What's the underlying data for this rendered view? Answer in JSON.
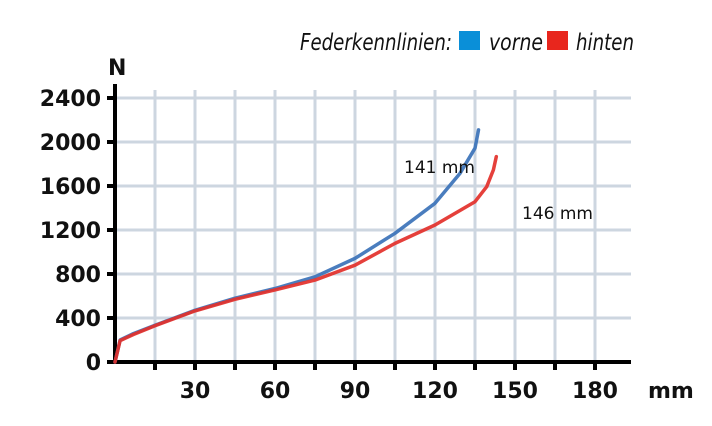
{
  "chart_data": {
    "type": "line",
    "title": "Federkennlinien:",
    "xlabel": "mm",
    "ylabel": "N",
    "xlim": [
      0,
      180
    ],
    "ylim": [
      0,
      2400
    ],
    "x_ticks": [
      30,
      60,
      90,
      120,
      150,
      180
    ],
    "x_tick_labels": [
      "30",
      "60",
      "90",
      "120",
      "150",
      "180"
    ],
    "y_ticks": [
      0,
      400,
      800,
      1200,
      1600,
      2000,
      2400
    ],
    "y_tick_labels": [
      "0",
      "400",
      "800",
      "1200",
      "1600",
      "2000",
      "2400"
    ],
    "x_grid_step": 15,
    "grid": true,
    "legend_placement": "top-right",
    "series": [
      {
        "name": "vorne",
        "color": "#3b72b9",
        "legend_color": "#0a8fd8",
        "x": [
          0,
          1.9,
          6.9,
          15,
          30,
          45,
          60,
          75,
          90,
          105,
          120,
          129.4,
          135,
          136.3
        ],
        "y": [
          0,
          200,
          258,
          334,
          470,
          580,
          668,
          775,
          942,
          1170,
          1443,
          1716,
          1944,
          2110
        ]
      },
      {
        "name": "hinten",
        "color": "#e3302a",
        "legend_color": "#e8261d",
        "x": [
          0,
          1.9,
          6.9,
          15,
          30,
          45,
          60,
          75,
          90,
          105,
          120,
          135,
          139.4,
          141.9,
          143
        ],
        "y": [
          0,
          195,
          250,
          330,
          465,
          570,
          655,
          745,
          880,
          1078,
          1245,
          1457,
          1594,
          1746,
          1867
        ]
      }
    ],
    "annotations": [
      {
        "text": "141 mm",
        "series": "vorne"
      },
      {
        "text": "146 mm",
        "series": "hinten"
      }
    ]
  }
}
